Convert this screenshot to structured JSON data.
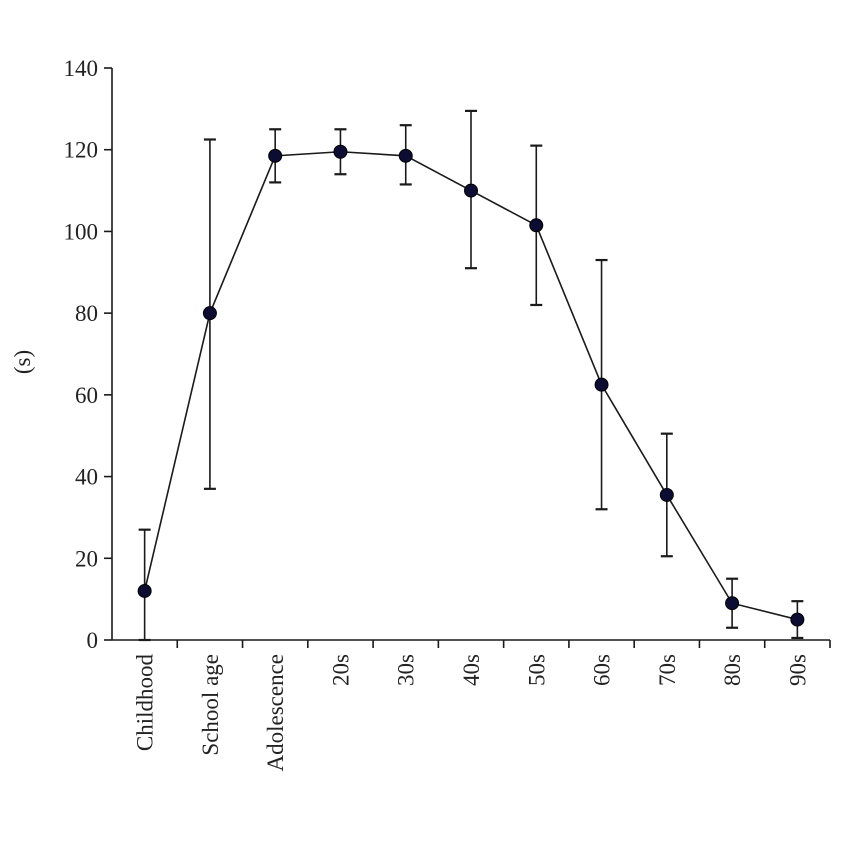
{
  "chart_data": {
    "type": "line",
    "title": "",
    "xlabel": "",
    "ylabel": "(s)",
    "ylim": [
      0,
      140
    ],
    "yticks": [
      0,
      20,
      40,
      60,
      80,
      100,
      120,
      140
    ],
    "grid": false,
    "legend": "none",
    "categories": [
      "Childhood",
      "School age",
      "Adolescence",
      "20s",
      "30s",
      "40s",
      "50s",
      "60s",
      "70s",
      "80s",
      "90s"
    ],
    "series": [
      {
        "values": [
          12,
          80,
          118.5,
          119.5,
          118.5,
          110,
          101.5,
          62.5,
          35.5,
          9,
          5
        ],
        "error_upper": [
          27,
          122.5,
          125,
          125,
          126,
          129.5,
          121,
          93,
          50.5,
          15,
          9.5
        ],
        "error_lower": [
          0,
          37,
          112,
          114,
          111.5,
          91,
          82,
          32,
          20.5,
          3,
          0.5
        ],
        "line_color": "#1a1a1a",
        "marker_color": "#0d0d33"
      }
    ]
  }
}
